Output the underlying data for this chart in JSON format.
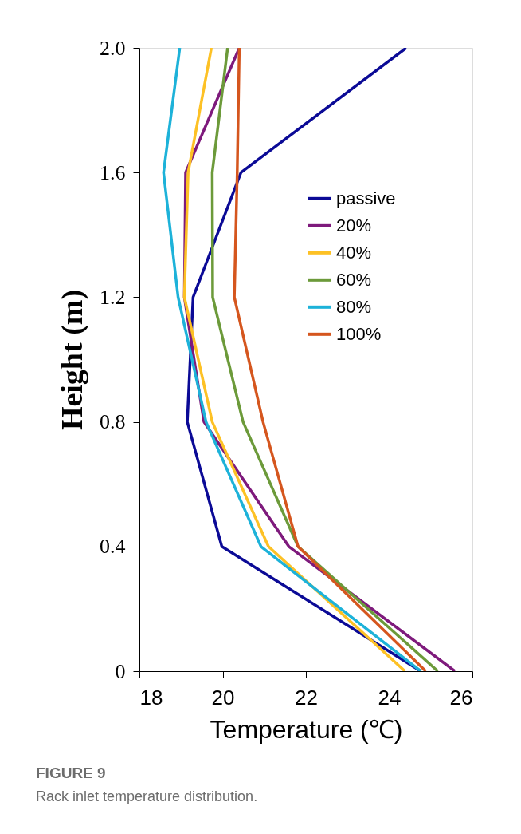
{
  "chart_data": {
    "type": "line",
    "xlabel": "Temperature (℃)",
    "ylabel": "Height (m)",
    "series": [
      {
        "name": "passive",
        "color": "#0b0a96",
        "x": [
          24.76,
          19.98,
          19.15,
          19.29,
          20.44,
          24.41
        ],
        "values": [
          0,
          0.4,
          0.8,
          1.2,
          1.6,
          2.0
        ]
      },
      {
        "name": "20%",
        "color": "#7e1a7c",
        "x": [
          25.58,
          21.59,
          19.55,
          19.08,
          19.11,
          20.4
        ],
        "values": [
          0,
          0.4,
          0.8,
          1.2,
          1.6,
          2.0
        ]
      },
      {
        "name": "40%",
        "color": "#fdc125",
        "x": [
          24.38,
          21.1,
          19.75,
          19.08,
          19.17,
          19.73
        ],
        "values": [
          0,
          0.4,
          0.8,
          1.2,
          1.6,
          2.0
        ]
      },
      {
        "name": "60%",
        "color": "#6c9a3a",
        "x": [
          25.17,
          21.81,
          20.49,
          19.76,
          19.75,
          20.12
        ],
        "values": [
          0,
          0.4,
          0.8,
          1.2,
          1.6,
          2.0
        ]
      },
      {
        "name": "80%",
        "color": "#1db2d9",
        "x": [
          24.76,
          20.92,
          19.6,
          18.93,
          18.58,
          18.97
        ],
        "values": [
          0,
          0.4,
          0.8,
          1.2,
          1.6,
          2.0
        ]
      },
      {
        "name": "100%",
        "color": "#d5561e",
        "x": [
          24.88,
          21.81,
          20.97,
          20.28,
          20.35,
          20.4
        ],
        "values": [
          0,
          0.4,
          0.8,
          1.2,
          1.6,
          2.0
        ]
      }
    ],
    "xlim": [
      18,
      26
    ],
    "xticks": [
      18,
      20,
      22,
      24,
      26
    ],
    "ylim": [
      0,
      2.0
    ],
    "yticks": [
      0,
      0.4,
      0.8,
      1.2,
      1.6,
      {
        "value": 2,
        "label": "2.0"
      }
    ],
    "legend": "top right",
    "line_style": "solid",
    "annotations": [
      "FIGURE 9",
      "Rack inlet temperature distribution."
    ]
  }
}
